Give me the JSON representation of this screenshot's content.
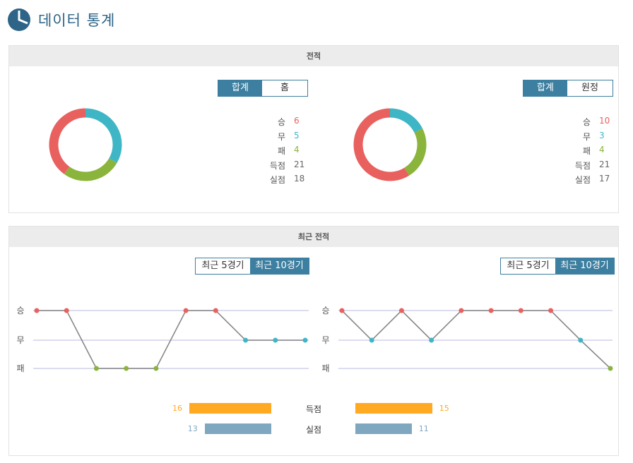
{
  "page": {
    "title": "데이터 통계"
  },
  "record_panel": {
    "title": "전적",
    "left": {
      "tabs": [
        {
          "label": "합계",
          "active": true
        },
        {
          "label": "홈",
          "active": false
        }
      ],
      "stats": [
        {
          "label": "승",
          "value": "6"
        },
        {
          "label": "무",
          "value": "5"
        },
        {
          "label": "패",
          "value": "4"
        },
        {
          "label": "득점",
          "value": "21"
        },
        {
          "label": "실점",
          "value": "18"
        }
      ],
      "donut": {
        "win": 6,
        "draw": 5,
        "loss": 4
      }
    },
    "right": {
      "tabs": [
        {
          "label": "합계",
          "active": true
        },
        {
          "label": "원정",
          "active": false
        }
      ],
      "stats": [
        {
          "label": "승",
          "value": "10"
        },
        {
          "label": "무",
          "value": "3"
        },
        {
          "label": "패",
          "value": "4"
        },
        {
          "label": "득점",
          "value": "21"
        },
        {
          "label": "실점",
          "value": "17"
        }
      ],
      "donut": {
        "win": 10,
        "draw": 3,
        "loss": 4
      }
    }
  },
  "recent_panel": {
    "title": "최근 전적",
    "left": {
      "tabs": [
        {
          "label": "최근 5경기",
          "active": false
        },
        {
          "label": "최근 10경기",
          "active": true
        }
      ],
      "results": [
        "승",
        "승",
        "패",
        "패",
        "패",
        "승",
        "승",
        "무",
        "무",
        "무"
      ]
    },
    "right": {
      "tabs": [
        {
          "label": "최근 5경기",
          "active": false
        },
        {
          "label": "최근 10경기",
          "active": true
        }
      ],
      "results": [
        "승",
        "무",
        "승",
        "무",
        "승",
        "승",
        "승",
        "승",
        "무",
        "패"
      ]
    },
    "y_labels": [
      "승",
      "무",
      "패"
    ],
    "goals": {
      "scored_label": "득점",
      "conceded_label": "실점",
      "left": {
        "scored": 16,
        "conceded": 13
      },
      "right": {
        "scored": 15,
        "conceded": 11
      }
    }
  },
  "colors": {
    "win": "#e8615f",
    "draw": "#3fb6c6",
    "loss": "#8ab43c",
    "scored_bar": "#ffaa22",
    "conceded_bar": "#7fa8c0",
    "accent": "#3d7fa0"
  }
}
